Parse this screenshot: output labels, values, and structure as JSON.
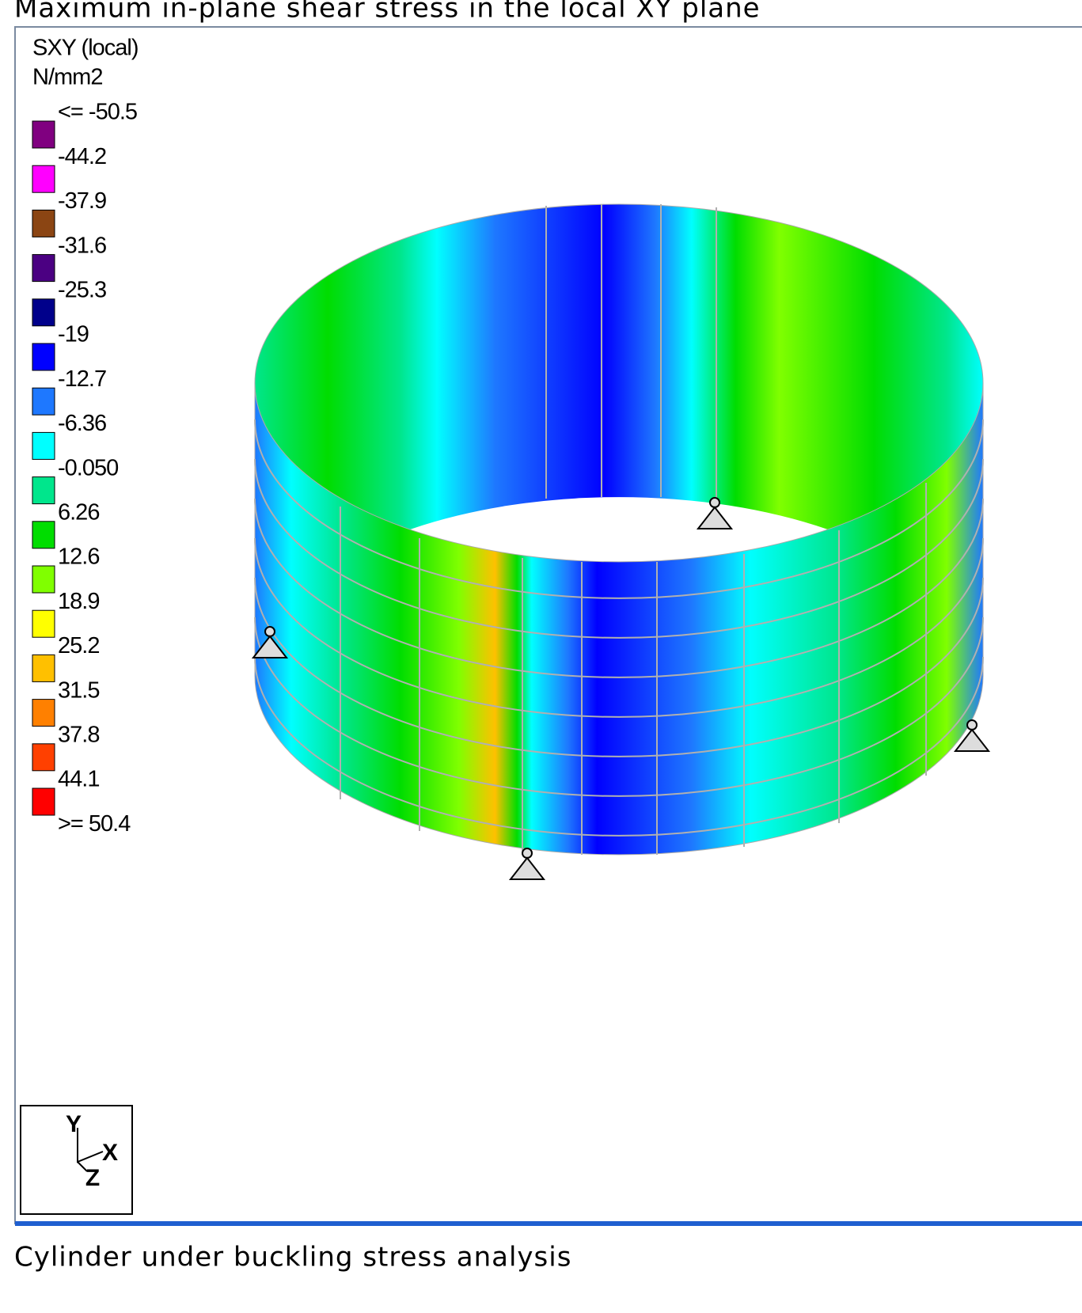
{
  "title": "Maximum in-plane shear stress in the local XY plane",
  "legend": {
    "heading": "SXY (local)",
    "unit": "N/mm2",
    "labels": [
      "<= -50.5",
      "-44.2",
      "-37.9",
      "-31.6",
      "-25.3",
      "-19",
      "-12.7",
      "-6.36",
      "-0.050",
      "6.26",
      "12.6",
      "18.9",
      "25.2",
      "31.5",
      "37.8",
      "44.1",
      ">= 50.4"
    ],
    "colors": [
      "#800080",
      "#ff00ff",
      "#8b4513",
      "#4b0082",
      "#00008b",
      "#0000ff",
      "#1e78ff",
      "#00ffff",
      "#00e68c",
      "#00dd00",
      "#80ff00",
      "#ffff00",
      "#ffc000",
      "#ff8000",
      "#ff4000",
      "#ff0000"
    ]
  },
  "triad": {
    "y": "Y",
    "x": "X",
    "z": "Z"
  },
  "caption": "Cylinder under buckling stress analysis"
}
